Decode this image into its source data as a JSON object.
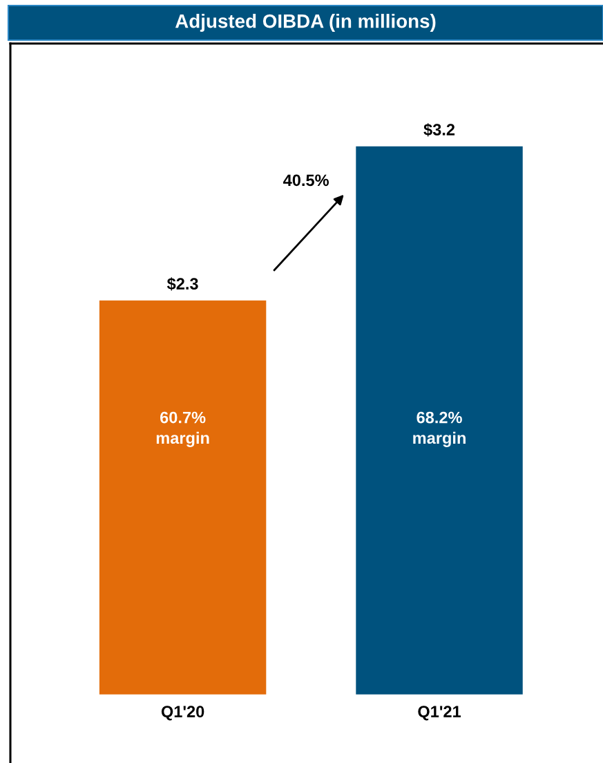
{
  "chart_data": {
    "type": "bar",
    "title": "Adjusted OIBDA (in millions)",
    "categories": [
      "Q1'20",
      "Q1'21"
    ],
    "values": [
      2.3,
      3.2
    ],
    "colors": [
      "#e36c0a",
      "#00527e"
    ],
    "value_labels": [
      "$2.3",
      "$3.2"
    ],
    "ylim": [
      -0.4,
      3.8
    ],
    "tick_labels": "x",
    "grid": false,
    "annotations": [
      "40.5%",
      "60.7%\nmargin",
      "68.2%\nmargin"
    ]
  }
}
